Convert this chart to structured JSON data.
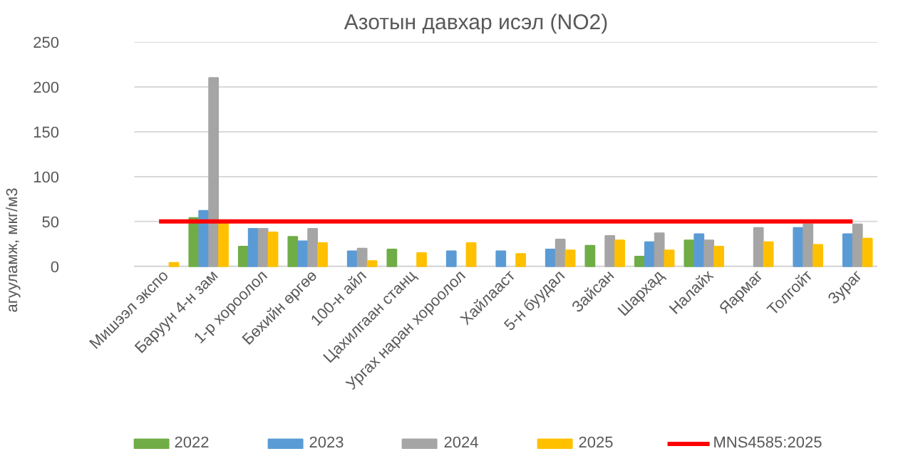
{
  "chart_data": {
    "type": "bar",
    "title": "Азотын давхар исэл (NO2)",
    "ylabel": "агууламж, мкг/м3",
    "categories": [
      "Мишээл экспо",
      "Баруун 4-н зам",
      "1-р хороолол",
      "Бөхийн өргөө",
      "100-н айл",
      "Цахилгаан станц",
      "Ургах наран хороолол",
      "Хайлааст",
      "5-н буудал",
      "Зайсан",
      "Шархад",
      "Налайх",
      "Яармаг",
      "Толгойт",
      "Зураг"
    ],
    "series": [
      {
        "name": "2022",
        "color": "#70ad47",
        "values": [
          null,
          54,
          22,
          33,
          null,
          19,
          null,
          null,
          null,
          23,
          11,
          29,
          null,
          null,
          null
        ]
      },
      {
        "name": "2023",
        "color": "#5b9bd5",
        "values": [
          null,
          62,
          42,
          28,
          17,
          null,
          17,
          17,
          19,
          null,
          27,
          36,
          null,
          43,
          36
        ]
      },
      {
        "name": "2024",
        "color": "#a5a5a5",
        "values": [
          null,
          210,
          42,
          42,
          20,
          null,
          null,
          null,
          30,
          34,
          37,
          29,
          43,
          47,
          47
        ]
      },
      {
        "name": "2025",
        "color": "#ffc000",
        "values": [
          4,
          50,
          38,
          26,
          6,
          15,
          26,
          14,
          18,
          29,
          18,
          22,
          27,
          24,
          31
        ]
      },
      {
        "name": "MNS4585:2025",
        "type": "line",
        "color": "#ff0000",
        "values": [
          50,
          50,
          50,
          50,
          50,
          50,
          50,
          50,
          50,
          50,
          50,
          50,
          50,
          50,
          50
        ]
      }
    ],
    "ylim": [
      0,
      250
    ],
    "yticks": [
      0,
      50,
      100,
      150,
      200,
      250
    ],
    "grid": "y",
    "legend": "bottom"
  }
}
